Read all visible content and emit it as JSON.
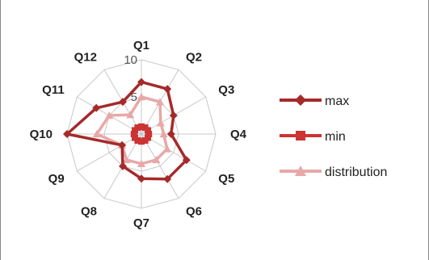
{
  "chart_data": {
    "type": "radar",
    "title": "",
    "categories": [
      "Q1",
      "Q2",
      "Q3",
      "Q4",
      "Q5",
      "Q6",
      "Q7",
      "Q8",
      "Q9",
      "Q10",
      "Q11",
      "Q12"
    ],
    "rlim": [
      0,
      10
    ],
    "ticks": [
      0,
      5,
      10
    ],
    "grid": true,
    "legend_position": "right",
    "series": [
      {
        "name": "max",
        "values": [
          7,
          7,
          5,
          4,
          7,
          7,
          6,
          5,
          3,
          10,
          7,
          5
        ],
        "color": "#a52a2a",
        "marker": "diamond"
      },
      {
        "name": "min",
        "values": [
          1,
          1,
          1,
          1,
          1,
          1,
          1,
          1,
          1,
          1,
          1,
          1
        ],
        "color": "#cc3333",
        "marker": "square"
      },
      {
        "name": "distribution",
        "values": [
          5,
          5,
          3,
          3,
          4,
          4,
          4,
          4,
          3,
          6,
          5,
          3
        ],
        "color": "#e8a8a8",
        "marker": "triangle"
      }
    ]
  }
}
